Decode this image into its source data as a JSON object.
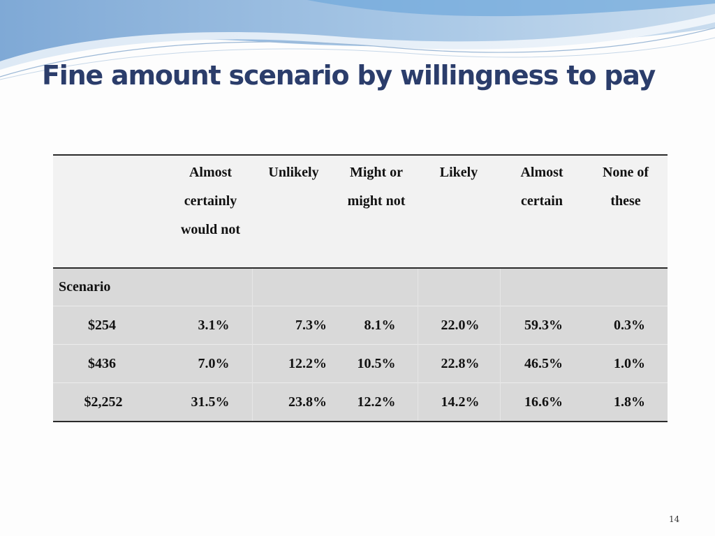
{
  "slide": {
    "title": "Fine amount scenario by willingness to pay",
    "page_number": "14",
    "colors": {
      "title": "#2b3d6b",
      "banner": "#9bc0e0",
      "header_bg": "#f2f2f2",
      "body_bg": "#d9d9d9"
    }
  },
  "table": {
    "columns": [
      {
        "lines": [
          "Almost",
          "certainly",
          "would not"
        ]
      },
      {
        "lines": [
          "Unlikely"
        ]
      },
      {
        "lines": [
          "Might or",
          "might not"
        ]
      },
      {
        "lines": [
          "Likely"
        ]
      },
      {
        "lines": [
          "Almost",
          "certain"
        ]
      },
      {
        "lines": [
          "None of",
          "these"
        ]
      }
    ],
    "section_label": "Scenario",
    "rows": [
      {
        "label": "$254",
        "values": [
          "3.1%",
          "7.3%",
          "8.1%",
          "22.0%",
          "59.3%",
          "0.3%"
        ]
      },
      {
        "label": "$436",
        "values": [
          "7.0%",
          "12.2%",
          "10.5%",
          "22.8%",
          "46.5%",
          "1.0%"
        ]
      },
      {
        "label": "$2,252",
        "values": [
          "31.5%",
          "23.8%",
          "12.2%",
          "14.2%",
          "16.6%",
          "1.8%"
        ]
      }
    ]
  }
}
